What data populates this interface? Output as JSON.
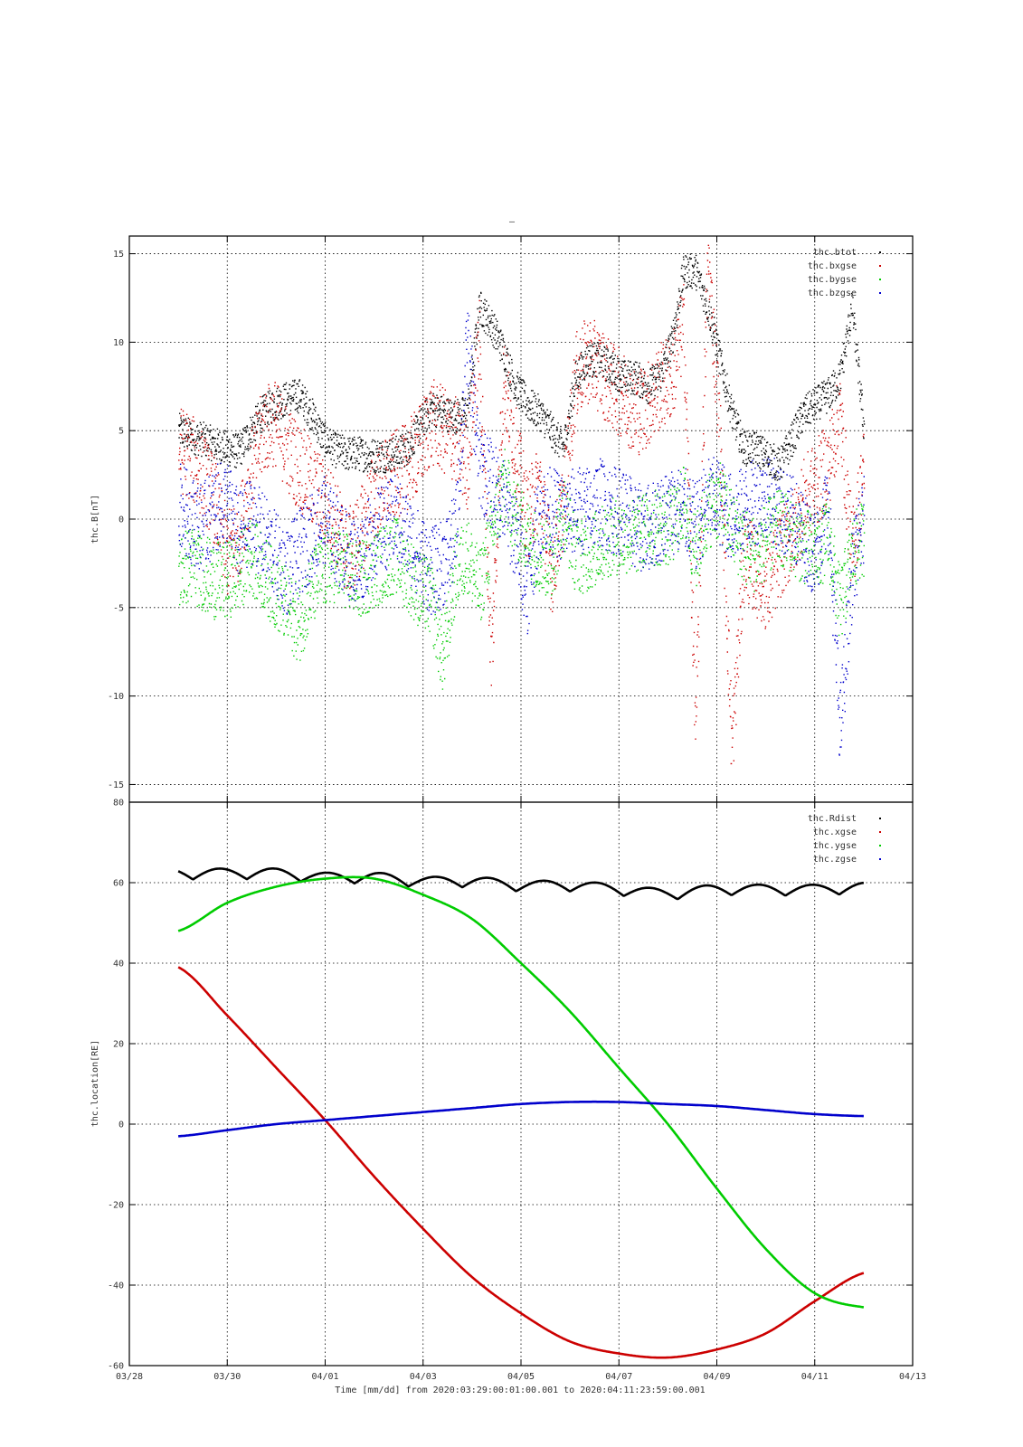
{
  "title": "–",
  "footer": "Time [mm/dd]  from 2020:03:29:00:01:00.001  to  2020:04:11:23:59:00.001",
  "colors": {
    "black": "#000000",
    "red": "#cc0000",
    "green": "#00cc00",
    "blue": "#0000cc"
  },
  "chart_data": [
    {
      "type": "scatter",
      "ylabel": "thc.B[nT]",
      "xlim": [
        "03/28",
        "04/13"
      ],
      "ylim": [
        -16,
        16
      ],
      "y_ticks": [
        15,
        10,
        5,
        0,
        -5,
        -10,
        -15
      ],
      "grid": true,
      "legend_position": "top-right",
      "series": [
        {
          "name": "thc.btot",
          "color": "#000000",
          "values": [
            5.0,
            4.7,
            4.5,
            4.2,
            4.0,
            3.8,
            5.0,
            6.0,
            6.5,
            6.8,
            7.0,
            6.0,
            4.6,
            3.9,
            3.7,
            3.7,
            3.6,
            3.6,
            3.7,
            4.0,
            5.2,
            6.3,
            6.0,
            5.8,
            6.0,
            12.0,
            11.0,
            9.5,
            7.5,
            6.5,
            6.0,
            5.0,
            4.0,
            8.0,
            9.0,
            9.0,
            8.5,
            8.0,
            8.0,
            7.5,
            8.0,
            10.0,
            14.0,
            14.0,
            12.0,
            9.0,
            6.0,
            4.0,
            4.0,
            3.5,
            3.0,
            4.5,
            6.0,
            6.5,
            7.0,
            8.0,
            12.0,
            5.0
          ]
        },
        {
          "name": "thc.bxgse",
          "color": "#cc0000",
          "values": [
            4.0,
            3.5,
            2.5,
            1.0,
            -2.0,
            -1.0,
            2.5,
            5.0,
            5.5,
            4.0,
            3.0,
            2.0,
            1.0,
            0.0,
            -2.0,
            -1.0,
            1.0,
            2.0,
            2.5,
            3.0,
            4.0,
            5.5,
            5.0,
            4.5,
            3.0,
            10.0,
            -8.0,
            8.0,
            4.0,
            0.0,
            2.0,
            -3.0,
            1.0,
            8.0,
            9.0,
            8.5,
            7.5,
            7.0,
            6.0,
            6.5,
            7.5,
            8.0,
            11.0,
            -12.0,
            15.0,
            5.0,
            -13.0,
            -2.0,
            -3.0,
            -4.0,
            -2.0,
            -1.0,
            1.0,
            2.0,
            3.0,
            6.0,
            -2.0,
            3.0
          ]
        },
        {
          "name": "thc.bygse",
          "color": "#00cc00",
          "values": [
            -3.0,
            -2.5,
            -3.0,
            -3.5,
            -3.5,
            -3.0,
            -2.0,
            -3.0,
            -4.0,
            -5.0,
            -6.0,
            -4.0,
            -3.0,
            -2.5,
            -3.0,
            -3.5,
            -3.0,
            -2.5,
            -2.0,
            -3.0,
            -4.0,
            -4.5,
            -8.0,
            -3.0,
            -2.0,
            -4.0,
            -1.0,
            2.0,
            0.0,
            -1.0,
            -2.0,
            -2.5,
            0.5,
            -2.0,
            -2.0,
            -1.5,
            -1.0,
            -1.0,
            -1.0,
            -0.5,
            -0.5,
            -0.5,
            1.0,
            -2.0,
            0.5,
            1.0,
            -0.5,
            -1.5,
            -2.0,
            -1.0,
            -0.5,
            -1.0,
            -1.5,
            -2.0,
            -1.0,
            -5.0,
            -2.0,
            -1.0
          ]
        },
        {
          "name": "thc.bzgse",
          "color": "#0000cc",
          "values": [
            1.0,
            0.0,
            -0.5,
            0.5,
            1.0,
            -1.0,
            0.0,
            -1.0,
            -2.0,
            -3.0,
            -2.0,
            -1.0,
            0.0,
            -1.0,
            -2.0,
            -2.5,
            -1.0,
            -0.5,
            0.0,
            -1.0,
            -2.0,
            -3.0,
            -2.5,
            -1.0,
            10.0,
            3.0,
            2.0,
            1.0,
            -1.0,
            -4.0,
            0.5,
            0.5,
            0.0,
            0.5,
            0.5,
            1.0,
            0.5,
            0.5,
            -0.5,
            -0.5,
            0.0,
            0.5,
            0.5,
            -0.5,
            1.0,
            1.0,
            0.0,
            0.5,
            1.0,
            1.5,
            0.5,
            0.0,
            -1.0,
            -2.0,
            1.0,
            -12.0,
            -3.0,
            0.0
          ]
        }
      ]
    },
    {
      "type": "line",
      "ylabel": "thc.location[RE]",
      "xlabel": "Time [mm/dd]",
      "xlim": [
        "03/28",
        "04/13"
      ],
      "x_ticks": [
        "03/28",
        "03/30",
        "04/01",
        "04/03",
        "04/05",
        "04/07",
        "04/09",
        "04/11",
        "04/13"
      ],
      "ylim": [
        -60,
        80
      ],
      "y_ticks": [
        80,
        60,
        40,
        20,
        0,
        -20,
        -40,
        -60
      ],
      "grid": true,
      "legend_position": "top-right",
      "x": [
        "03/29",
        "03/30",
        "03/31",
        "04/01",
        "04/02",
        "04/03",
        "04/04",
        "04/05",
        "04/06",
        "04/07",
        "04/08",
        "04/09",
        "04/10",
        "04/11",
        "04/12"
      ],
      "series": [
        {
          "name": "thc.Rdist",
          "color": "#000000",
          "values": [
            62,
            62,
            62,
            61,
            61,
            60,
            60,
            59,
            59,
            58,
            57,
            58,
            58,
            58,
            58.5
          ]
        },
        {
          "name": "thc.xgse",
          "color": "#cc0000",
          "values": [
            39,
            27,
            14,
            1,
            -13,
            -26,
            -38,
            -47,
            -54,
            -57,
            -58,
            -56,
            -52,
            -44,
            -37
          ]
        },
        {
          "name": "thc.ygse",
          "color": "#00cc00",
          "values": [
            48,
            55,
            59,
            61,
            61,
            57,
            51,
            40,
            28,
            14,
            0,
            -16,
            -31,
            -42,
            -45.5
          ]
        },
        {
          "name": "thc.zgse",
          "color": "#0000cc",
          "values": [
            -3,
            -1.5,
            0,
            1,
            2,
            3,
            4,
            5,
            5.5,
            5.5,
            5,
            4.5,
            3.5,
            2.5,
            2
          ]
        }
      ]
    }
  ]
}
